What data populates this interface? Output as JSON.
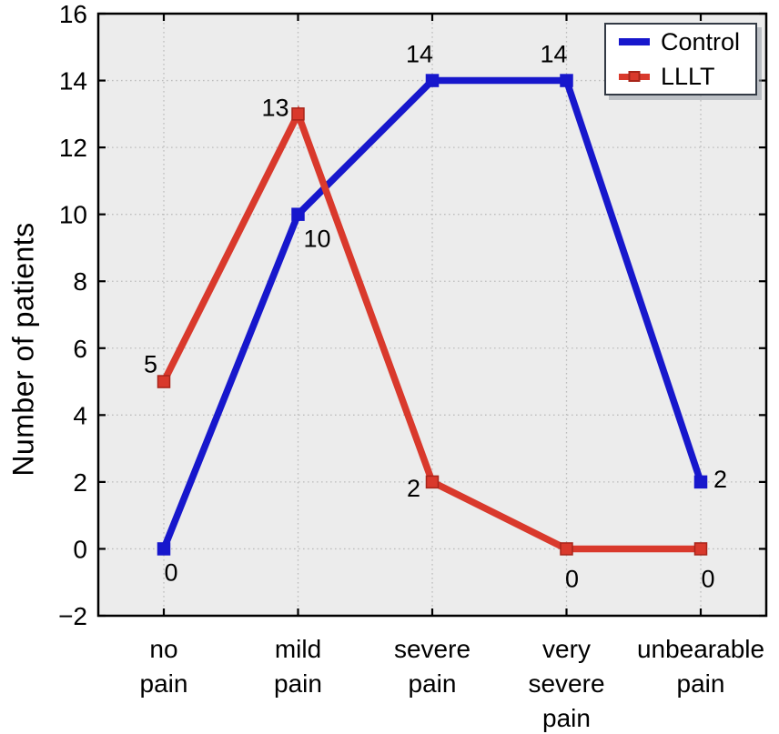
{
  "chart_data": {
    "type": "line",
    "title": "",
    "categories": [
      "no pain",
      "mild pain",
      "severe pain",
      "very severe pain",
      "unbearable pain"
    ],
    "category_lines": [
      [
        "no",
        "pain"
      ],
      [
        "mild",
        "pain"
      ],
      [
        "severe",
        "pain"
      ],
      [
        "very",
        "severe",
        "pain"
      ],
      [
        "unbearable",
        "pain"
      ]
    ],
    "series": [
      {
        "name": "Control",
        "color": "#1717cc",
        "marker": "square",
        "marker_border": "#1717cc",
        "values": [
          0,
          10,
          14,
          14,
          2
        ]
      },
      {
        "name": "LLLT",
        "color": "#d9392c",
        "marker": "square",
        "marker_border": "#a8251a",
        "values": [
          5,
          13,
          2,
          0,
          0
        ]
      }
    ],
    "xlabel": "",
    "ylabel": "Number of patients",
    "ylim": [
      -2,
      16
    ],
    "yticks": [
      -2,
      0,
      2,
      4,
      6,
      8,
      10,
      12,
      14,
      16
    ],
    "grid": true,
    "grid_style": "dotted",
    "data_labels": true,
    "legend_position": "top-right",
    "plot_bg": "#ececec",
    "frame_color": "#000000",
    "grid_color": "#bdbdbd"
  }
}
